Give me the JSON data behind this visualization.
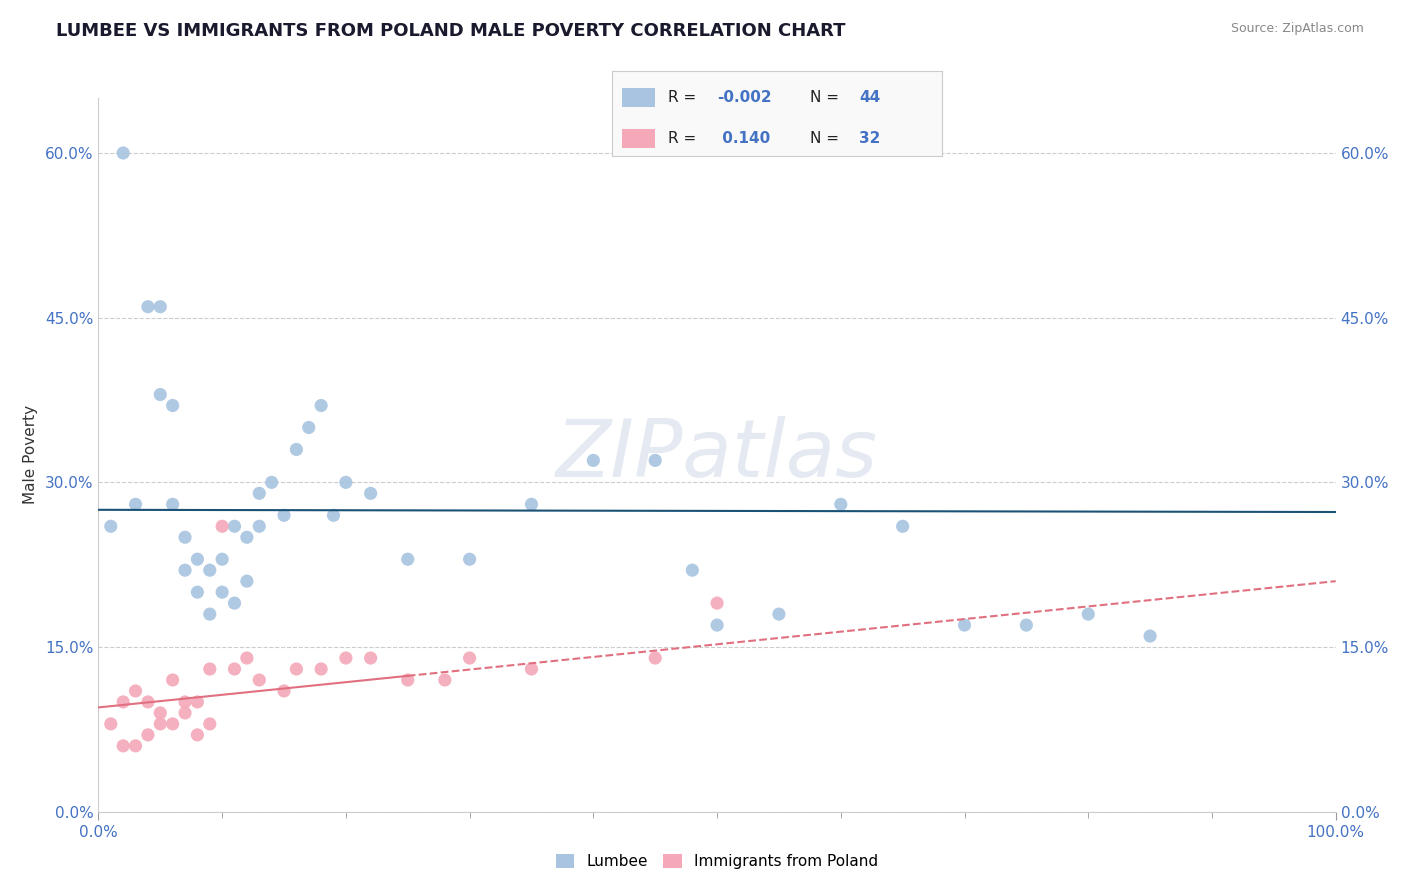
{
  "title": "LUMBEE VS IMMIGRANTS FROM POLAND MALE POVERTY CORRELATION CHART",
  "source": "Source: ZipAtlas.com",
  "ylabel": "Male Poverty",
  "ytick_values": [
    0,
    15,
    30,
    45,
    60
  ],
  "xlim": [
    0,
    100
  ],
  "ylim": [
    0,
    65
  ],
  "lumbee_color": "#a8c4e0",
  "poland_color": "#f4a8b8",
  "lumbee_line_color": "#1a5276",
  "poland_line_color": "#e07080",
  "watermark": "ZIPatlas",
  "lumbee_x": [
    1,
    2,
    3,
    4,
    5,
    5,
    6,
    6,
    7,
    7,
    8,
    8,
    9,
    9,
    10,
    10,
    11,
    11,
    12,
    12,
    13,
    13,
    14,
    15,
    16,
    17,
    18,
    19,
    20,
    22,
    25,
    30,
    35,
    40,
    45,
    48,
    50,
    55,
    60,
    65,
    70,
    75,
    80,
    85
  ],
  "lumbee_y": [
    26,
    60,
    28,
    46,
    46,
    38,
    37,
    28,
    25,
    22,
    23,
    20,
    22,
    18,
    23,
    20,
    26,
    19,
    25,
    21,
    29,
    26,
    30,
    27,
    33,
    35,
    37,
    27,
    30,
    29,
    23,
    23,
    28,
    32,
    32,
    22,
    17,
    18,
    28,
    26,
    17,
    17,
    18,
    16
  ],
  "poland_x": [
    1,
    2,
    2,
    3,
    3,
    4,
    4,
    5,
    5,
    6,
    6,
    7,
    7,
    8,
    8,
    9,
    9,
    10,
    11,
    12,
    13,
    15,
    16,
    18,
    20,
    22,
    25,
    28,
    30,
    35,
    45,
    50
  ],
  "poland_y": [
    8,
    10,
    6,
    11,
    6,
    10,
    7,
    9,
    8,
    8,
    12,
    9,
    10,
    10,
    7,
    13,
    8,
    26,
    13,
    14,
    12,
    11,
    13,
    13,
    14,
    14,
    12,
    12,
    14,
    13,
    14,
    19
  ],
  "lumbee_regression_y0": 27.5,
  "lumbee_regression_y1": 27.3,
  "poland_regression_y0": 9.5,
  "poland_regression_y1": 21.0
}
